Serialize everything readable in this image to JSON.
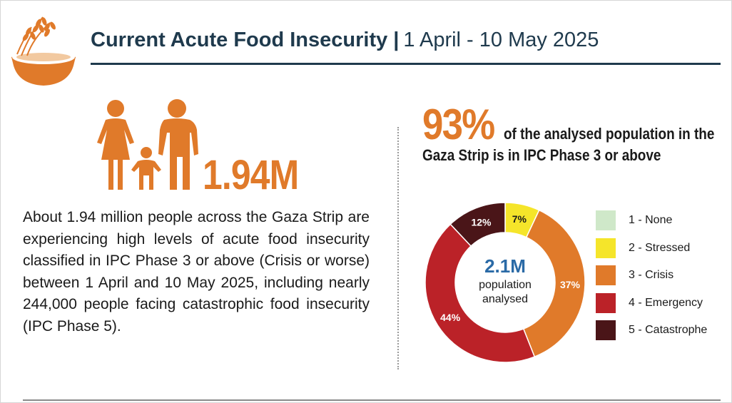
{
  "header": {
    "title": "Current Acute Food Insecurity",
    "separator": "|",
    "date_range": "1 April - 10 May 2025"
  },
  "left_panel": {
    "big_number": "1.94M",
    "description": "About 1.94 million people across the Gaza Strip are experiencing high levels of acute food insecurity classified in IPC Phase 3 or above (Crisis or worse) between 1 April and 10 May 2025, including nearly 244,000 people facing catastrophic food insecurity (IPC Phase 5)."
  },
  "right_panel": {
    "headline_pct": "93%",
    "headline_text_1": "of the analysed population in the",
    "headline_text_2": "Gaza Strip is in IPC Phase 3 or above"
  },
  "chart_data": {
    "type": "pie",
    "style": "donut",
    "title": "",
    "center_value": "2.1M",
    "center_label_1": "population",
    "center_label_2": "analysed",
    "categories": [
      "1 - None",
      "2 - Stressed",
      "3 - Crisis",
      "4 - Emergency",
      "5 - Catastrophe"
    ],
    "values": [
      0,
      7,
      37,
      44,
      12
    ],
    "value_labels": [
      "",
      "7%",
      "37%",
      "44%",
      "12%"
    ],
    "colors": [
      "#cfe8c9",
      "#f5e52a",
      "#e07a2a",
      "#bb2228",
      "#4a1518"
    ],
    "label_colors": [
      "#1a1a1a",
      "#1a1a1a",
      "#ffffff",
      "#ffffff",
      "#ffffff"
    ],
    "legend_position": "right"
  },
  "colors": {
    "accent_orange": "#e07a2a",
    "title_navy": "#1f3a4d",
    "center_blue": "#2a6aa6"
  },
  "icons": {
    "logo": "wheat-bowl-icon",
    "family": "family-icon"
  }
}
